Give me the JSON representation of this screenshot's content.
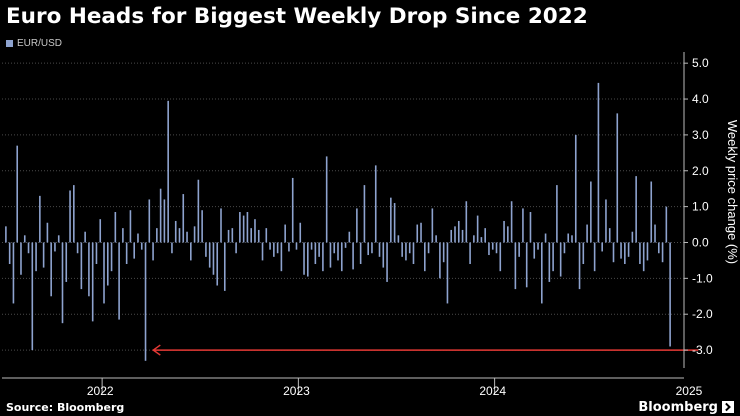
{
  "title": "Euro Heads for Biggest Weekly Drop Since 2022",
  "source": "Source: Bloomberg",
  "brand": "Bloomberg",
  "colors": {
    "bar": "#8ea3cf",
    "arrow": "#e53935",
    "grid": "#4a4a4a"
  },
  "chart_data": {
    "type": "bar",
    "ylabel": "Weekly price change (%)",
    "ylim": [
      -3.5,
      5.2
    ],
    "yticks": [
      "5.0",
      "4.0",
      "3.0",
      "2.0",
      "1.0",
      "0.0",
      "-1.0",
      "-2.0",
      "-3.0"
    ],
    "ytick_values": [
      5,
      4,
      3,
      2,
      1,
      0,
      -1,
      -2,
      -3
    ],
    "xticks": [
      "2022",
      "2023",
      "2024",
      "2025"
    ],
    "xtick_positions": [
      0,
      52,
      104,
      156
    ],
    "year_boundaries": [
      26,
      78,
      130
    ],
    "annotation": {
      "type": "arrow",
      "value": -3.0,
      "from_index": 184,
      "to_index": 38
    },
    "series": [
      {
        "name": "EUR/USD",
        "values": [
          0.45,
          -0.6,
          -1.7,
          2.7,
          -0.9,
          0.2,
          -0.3,
          -3.0,
          -0.8,
          1.3,
          -0.7,
          0.55,
          -1.5,
          -0.25,
          0.2,
          -2.25,
          -1.1,
          1.45,
          1.6,
          -0.3,
          -1.3,
          0.3,
          -1.5,
          -2.2,
          -0.6,
          0.65,
          -1.7,
          -1.2,
          -0.8,
          0.85,
          -2.15,
          0.4,
          -0.6,
          0.9,
          -0.45,
          0.25,
          -0.2,
          -3.3,
          1.2,
          -0.5,
          0.4,
          1.5,
          1.2,
          3.95,
          -0.3,
          0.6,
          0.4,
          1.35,
          0.3,
          -0.5,
          0.45,
          1.75,
          0.9,
          -0.4,
          -0.7,
          -0.9,
          -1.2,
          0.95,
          -1.35,
          0.35,
          0.4,
          -0.3,
          0.85,
          0.75,
          0.85,
          0.4,
          0.65,
          0.35,
          -0.5,
          0.4,
          -0.2,
          -0.4,
          -0.3,
          -0.8,
          0.5,
          -0.25,
          1.8,
          -0.2,
          0.55,
          -0.9,
          -0.95,
          -0.2,
          -0.6,
          -0.4,
          -0.8,
          2.4,
          -0.7,
          -0.3,
          -0.5,
          -0.8,
          -0.15,
          0.3,
          -0.75,
          0.95,
          -0.6,
          1.6,
          -0.35,
          -0.3,
          2.15,
          -0.4,
          -0.7,
          -1.1,
          1.25,
          1.1,
          0.2,
          -0.4,
          -0.5,
          -0.3,
          -0.6,
          0.5,
          0.55,
          -0.8,
          -0.3,
          0.95,
          0.2,
          -1.0,
          -0.55,
          -1.7,
          0.35,
          0.45,
          0.6,
          0.35,
          1.15,
          -0.6,
          0.2,
          0.75,
          0.15,
          0.4,
          -0.35,
          -0.2,
          -0.3,
          -0.8,
          0.6,
          0.45,
          1.15,
          -1.3,
          -0.4,
          0.95,
          -1.25,
          0.85,
          -0.45,
          -0.2,
          -1.7,
          0.25,
          -1.1,
          -0.8,
          1.6,
          -0.95,
          -0.3,
          0.25,
          0.2,
          3.0,
          -1.3,
          -0.6,
          0.5,
          1.7,
          -0.8,
          4.45,
          -0.25,
          1.2,
          0.4,
          -0.55,
          3.6,
          -0.45,
          -0.6,
          -0.4,
          0.3,
          1.85,
          -0.6,
          -0.8,
          -0.5,
          1.7,
          0.5,
          -0.3,
          -0.55,
          1.0,
          -2.9
        ]
      }
    ]
  }
}
